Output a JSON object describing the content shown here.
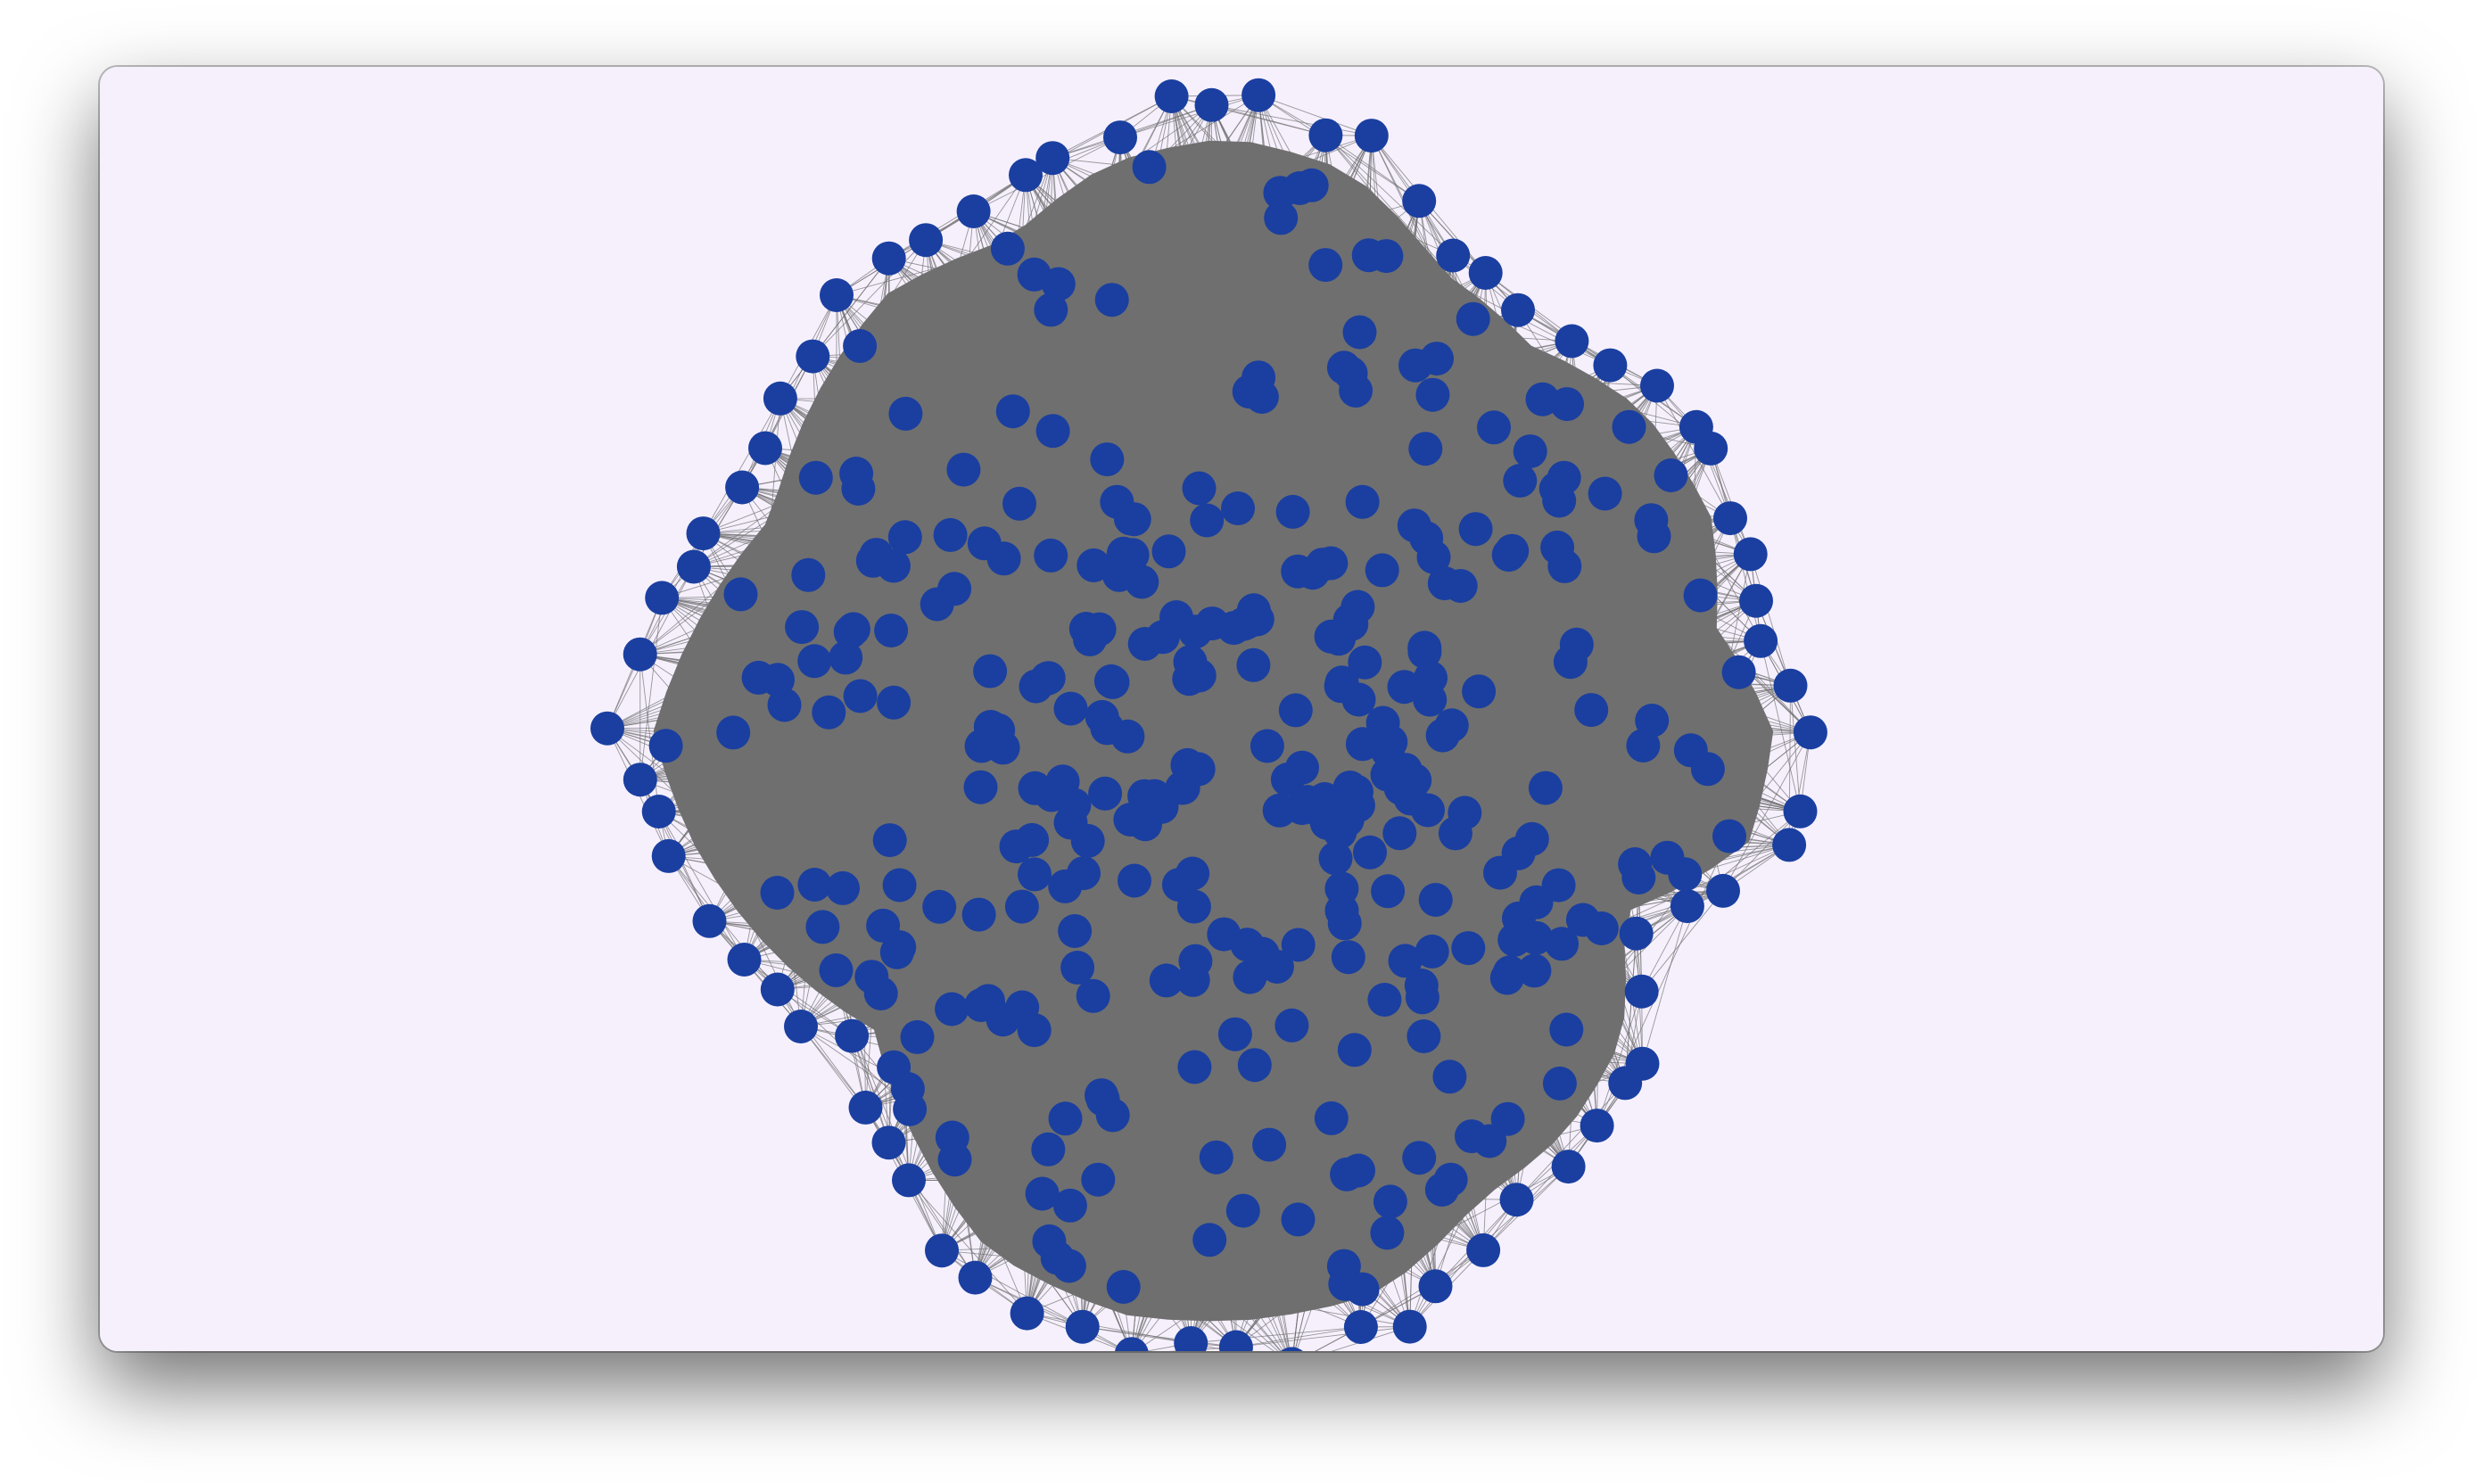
{
  "window": {
    "background_color": "#f6f0fd"
  },
  "graph": {
    "edge_color": "#6f6f6f",
    "hull_fill_color": "#6f6f6f",
    "node_color": "#1a3fa0",
    "node_count_visible": 400
  }
}
